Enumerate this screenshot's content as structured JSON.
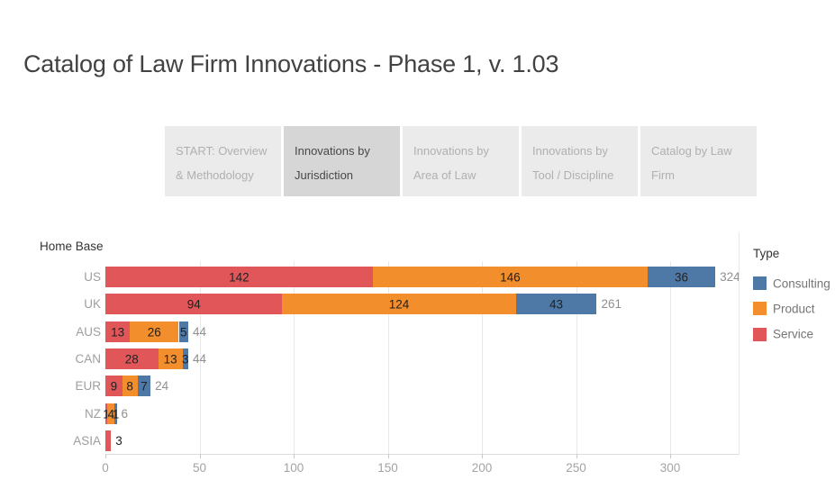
{
  "title": "Catalog of Law Firm Innovations - Phase 1, v. 1.03",
  "tabs": [
    {
      "label": "START: Overview & Methodology",
      "active": false
    },
    {
      "label": "Innovations by Jurisdiction",
      "active": true
    },
    {
      "label": "Innovations by Area of Law",
      "active": false
    },
    {
      "label": "Innovations by Tool / Discipline",
      "active": false
    },
    {
      "label": "Catalog by Law Firm",
      "active": false
    }
  ],
  "chart_data": {
    "type": "bar",
    "orientation": "horizontal",
    "stacked": true,
    "row_header": "Home Base",
    "categories": [
      "US",
      "UK",
      "AUS",
      "CAN",
      "EUR",
      "NZ",
      "ASIA"
    ],
    "series": [
      {
        "name": "Service",
        "color": "#e15759",
        "values": [
          142,
          94,
          13,
          28,
          9,
          1,
          3
        ]
      },
      {
        "name": "Product",
        "color": "#f28e2b",
        "values": [
          146,
          124,
          26,
          13,
          8,
          4,
          0
        ]
      },
      {
        "name": "Consulting",
        "color": "#4e79a7",
        "values": [
          36,
          43,
          5,
          3,
          7,
          1,
          0
        ]
      }
    ],
    "totals": [
      324,
      261,
      44,
      44,
      24,
      6,
      3
    ],
    "total_labels": [
      "324",
      "261",
      "44",
      "44",
      "24",
      "6",
      ""
    ],
    "x_ticks": [
      0,
      50,
      100,
      150,
      200,
      250,
      300
    ],
    "xlim": [
      0,
      340
    ],
    "grid": true,
    "legend": {
      "title": "Type",
      "position": "right",
      "entries": [
        {
          "label": "Consulting",
          "color": "#4e79a7"
        },
        {
          "label": "Product",
          "color": "#f28e2b"
        },
        {
          "label": "Service",
          "color": "#e15759"
        }
      ]
    }
  }
}
